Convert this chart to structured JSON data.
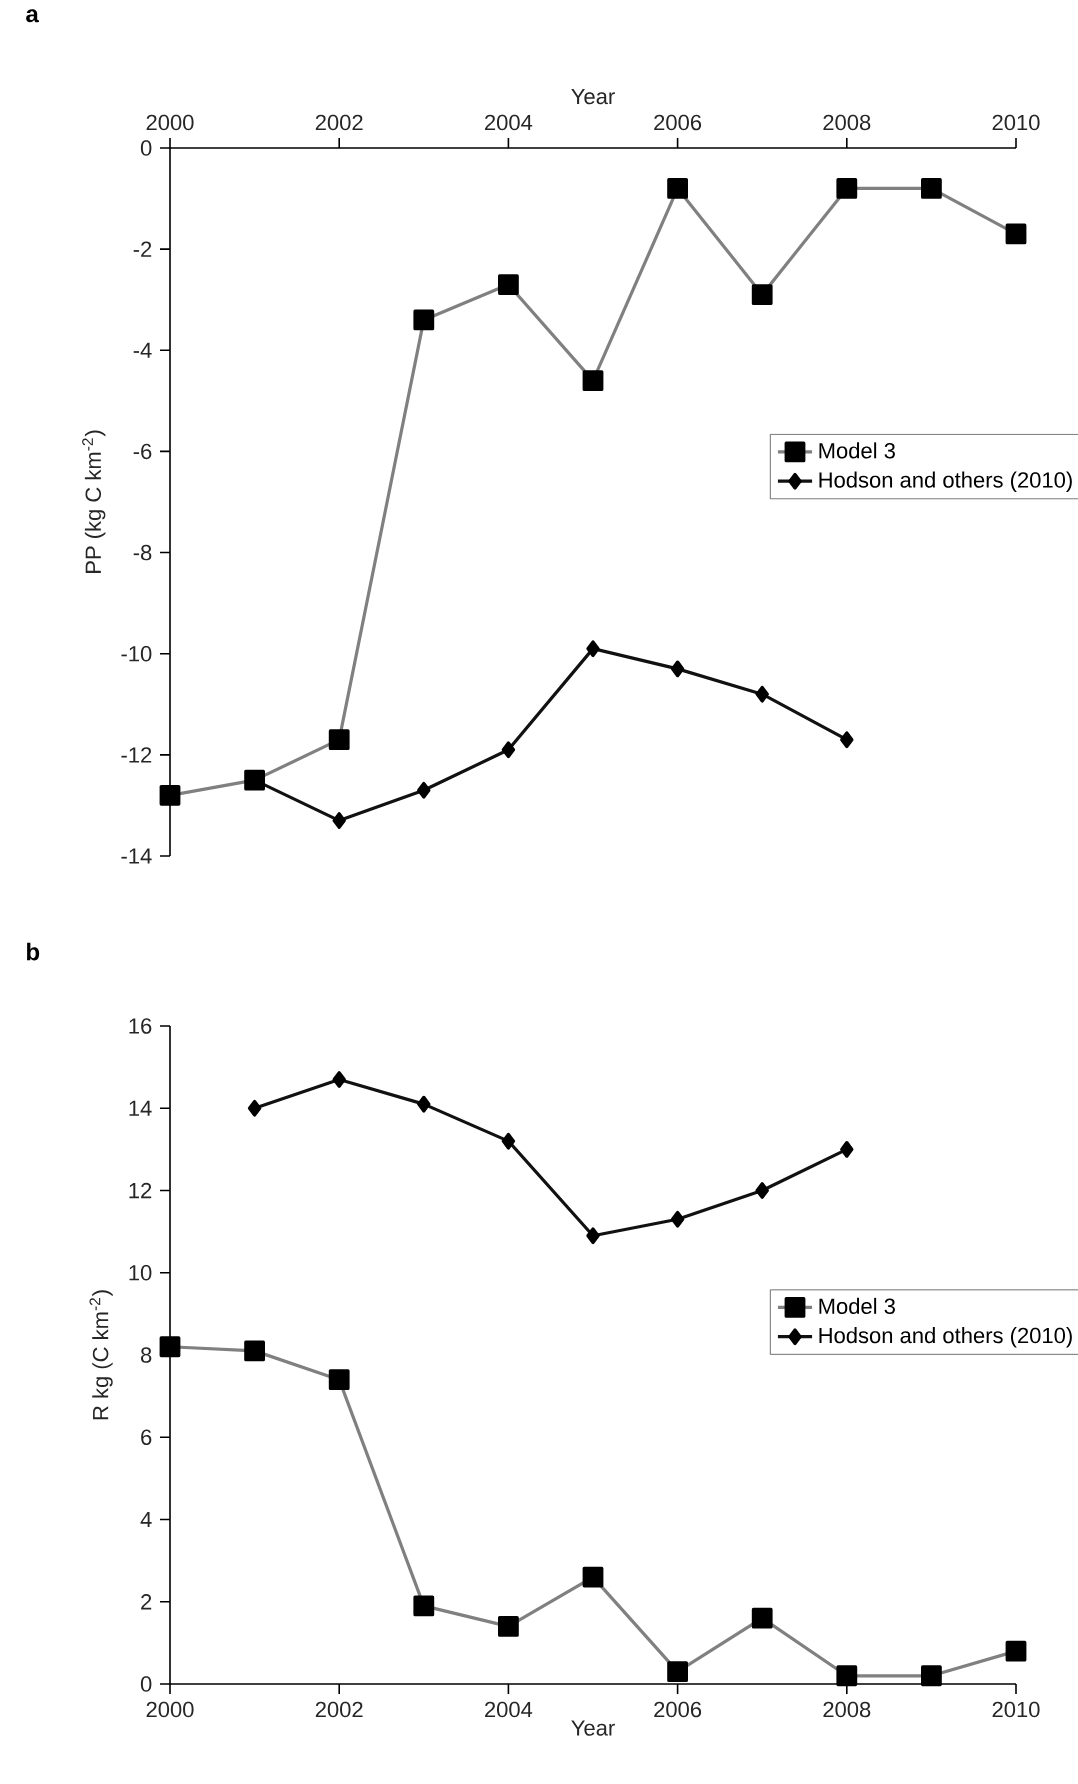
{
  "chart_data": [
    {
      "type": "line",
      "title": "a",
      "xlabel": "Year",
      "ylabel": "PP (kg C km$^{-2}$)",
      "xlim": [
        2000,
        2010
      ],
      "xticks": [
        2000,
        2002,
        2004,
        2006,
        2008,
        2010
      ],
      "ylim": [
        -14,
        0
      ],
      "yticks": [
        -14,
        -12,
        -10,
        -8,
        -6,
        -4,
        -2,
        0
      ],
      "legend": "right",
      "line_style": "solid",
      "series": [
        {
          "name": "Model 3",
          "color": "#808080",
          "marker": "square",
          "x": [
            2000,
            2001,
            2002,
            2003,
            2004,
            2005,
            2006,
            2007,
            2008,
            2009,
            2010
          ],
          "values": [
            -12.8,
            -12.5,
            -11.7,
            -3.4,
            -2.7,
            -4.6,
            -0.8,
            -2.9,
            -0.8,
            -0.8,
            -1.7
          ]
        },
        {
          "name": "Hodson and others (2010)",
          "color": "#111111",
          "marker": "diamond",
          "x": [
            2001,
            2002,
            2003,
            2004,
            2005,
            2006,
            2007,
            2008
          ],
          "values": [
            -12.5,
            -13.3,
            -12.7,
            -11.9,
            -9.9,
            -10.3,
            -10.8,
            -11.7
          ]
        }
      ]
    },
    {
      "type": "line",
      "title": "b",
      "xlabel": "Year",
      "ylabel": "R kg (C km$^{-2}$)",
      "xlim": [
        2000,
        2010
      ],
      "xticks": [
        2000,
        2002,
        2004,
        2006,
        2008,
        2010
      ],
      "ylim": [
        0,
        16
      ],
      "yticks": [
        0,
        2,
        4,
        6,
        8,
        10,
        12,
        14,
        16
      ],
      "legend": "right",
      "line_style": "solid",
      "series": [
        {
          "name": "Model 3",
          "color": "#808080",
          "marker": "square",
          "x": [
            2000,
            2001,
            2002,
            2003,
            2004,
            2005,
            2006,
            2007,
            2008,
            2009,
            2010
          ],
          "values": [
            8.2,
            8.1,
            7.4,
            1.9,
            1.4,
            2.6,
            0.3,
            1.6,
            0.2,
            0.2,
            0.8
          ]
        },
        {
          "name": "Hodson and others (2010)",
          "color": "#111111",
          "marker": "diamond",
          "x": [
            2001,
            2002,
            2003,
            2004,
            2005,
            2006,
            2007,
            2008
          ],
          "values": [
            14.0,
            14.7,
            14.1,
            13.2,
            10.9,
            11.3,
            12.0,
            13.0
          ]
        }
      ]
    }
  ]
}
